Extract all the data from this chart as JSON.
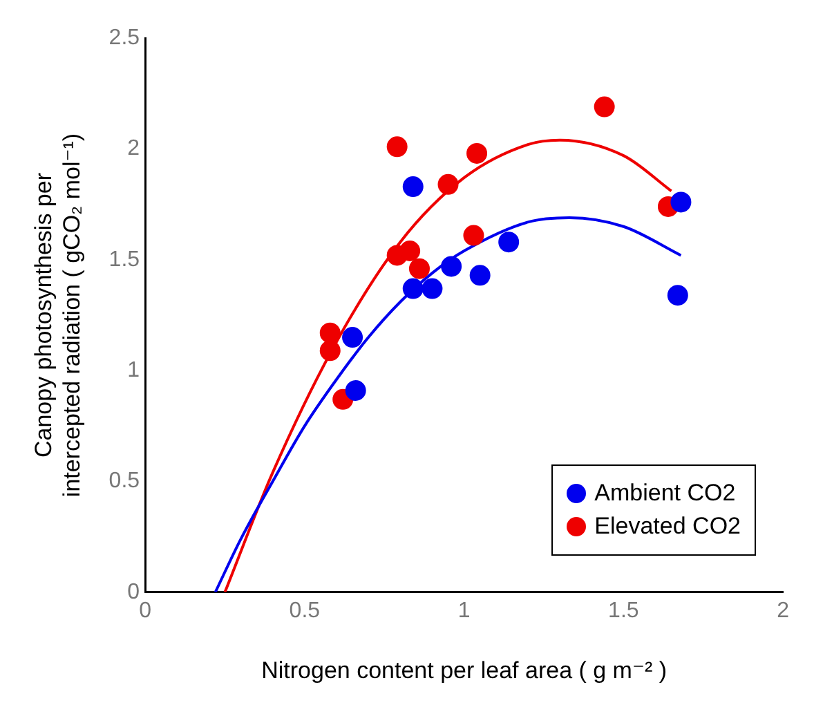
{
  "chart_data": {
    "type": "scatter",
    "xlabel": "Nitrogen content per leaf area ( g m⁻² )",
    "ylabel": "Canopy photosynthesis per intercepted radiation ( gCO₂ mol⁻¹)",
    "xlim": [
      0,
      2
    ],
    "xticks": [
      0,
      0.5,
      1,
      1.5,
      2
    ],
    "ylim": [
      0,
      2.5
    ],
    "yticks": [
      0,
      0.5,
      1,
      1.5,
      2,
      2.5
    ],
    "grid": false,
    "legend": "bottom right",
    "marker": "circle",
    "series": [
      {
        "name": "Ambient CO2",
        "color": "#0000ee",
        "x": [
          0.84,
          0.65,
          0.66,
          0.84,
          0.9,
          0.96,
          1.05,
          1.14,
          1.67,
          1.68
        ],
        "values": [
          1.83,
          1.15,
          0.91,
          1.37,
          1.37,
          1.47,
          1.43,
          1.58,
          1.34,
          1.76
        ]
      },
      {
        "name": "Elevated CO2",
        "color": "#ee0000",
        "x": [
          0.79,
          0.95,
          1.04,
          1.44,
          1.64,
          1.03,
          0.79,
          0.83,
          0.86,
          0.58,
          0.58,
          0.62
        ],
        "values": [
          2.01,
          1.84,
          1.98,
          2.19,
          1.74,
          1.61,
          1.52,
          1.54,
          1.46,
          1.17,
          1.09,
          0.87
        ]
      },
      {
        "type": "line",
        "color": "#0000ee",
        "marker": "none",
        "x": [
          0.22,
          0.3,
          0.4,
          0.5,
          0.6,
          0.7,
          0.8,
          0.9,
          1.0,
          1.2,
          1.33,
          1.5,
          1.68
        ],
        "values": [
          0,
          0.24,
          0.5,
          0.75,
          0.96,
          1.15,
          1.31,
          1.44,
          1.54,
          1.67,
          1.69,
          1.65,
          1.52
        ]
      },
      {
        "type": "line",
        "color": "#ee0000",
        "marker": "none",
        "x": [
          0.25,
          0.4,
          0.6,
          0.8,
          1.0,
          1.2,
          1.3,
          1.5,
          1.65
        ],
        "values": [
          0,
          0.54,
          1.13,
          1.58,
          1.87,
          2.02,
          2.04,
          1.97,
          1.81
        ]
      }
    ]
  }
}
